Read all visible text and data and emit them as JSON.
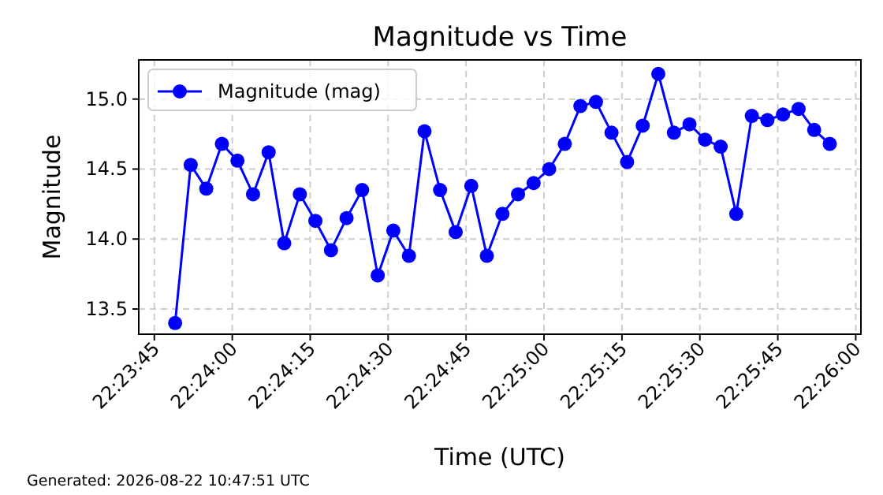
{
  "chart_data": {
    "type": "line",
    "title": "Magnitude vs Time",
    "xlabel": "Time (UTC)",
    "ylabel": "Magnitude",
    "x": [
      "2026-08-22T22:23:49",
      "2026-08-22T22:23:52",
      "2026-08-22T22:23:55",
      "2026-08-22T22:23:58",
      "2026-08-22T22:24:01",
      "2026-08-22T22:24:04",
      "2026-08-22T22:24:07",
      "2026-08-22T22:24:10",
      "2026-08-22T22:24:13",
      "2026-08-22T22:24:16",
      "2026-08-22T22:24:19",
      "2026-08-22T22:24:22",
      "2026-08-22T22:24:25",
      "2026-08-22T22:24:28",
      "2026-08-22T22:24:31",
      "2026-08-22T22:24:34",
      "2026-08-22T22:24:37",
      "2026-08-22T22:24:40",
      "2026-08-22T22:24:43",
      "2026-08-22T22:24:46",
      "2026-08-22T22:24:49",
      "2026-08-22T22:24:52",
      "2026-08-22T22:24:55",
      "2026-08-22T22:24:58",
      "2026-08-22T22:25:01",
      "2026-08-22T22:25:04",
      "2026-08-22T22:25:07",
      "2026-08-22T22:25:10",
      "2026-08-22T22:25:13",
      "2026-08-22T22:25:16",
      "2026-08-22T22:25:19",
      "2026-08-22T22:25:22",
      "2026-08-22T22:25:25",
      "2026-08-22T22:25:28",
      "2026-08-22T22:25:31",
      "2026-08-22T22:25:34",
      "2026-08-22T22:25:37",
      "2026-08-22T22:25:40",
      "2026-08-22T22:25:43",
      "2026-08-22T22:25:46",
      "2026-08-22T22:25:49",
      "2026-08-22T22:25:52",
      "2026-08-22T22:25:55"
    ],
    "series": [
      {
        "name": "Magnitude (mag)",
        "color": "#0000ff",
        "values": [
          13.4,
          14.53,
          14.36,
          14.68,
          14.56,
          14.32,
          14.62,
          13.97,
          14.32,
          14.13,
          13.92,
          14.15,
          14.35,
          13.74,
          14.06,
          13.88,
          14.77,
          14.35,
          14.05,
          14.38,
          13.88,
          14.18,
          14.32,
          14.4,
          14.5,
          14.68,
          14.95,
          14.98,
          14.76,
          14.55,
          14.81,
          15.18,
          14.76,
          14.82,
          14.71,
          14.66,
          14.18,
          14.88,
          14.85,
          14.89,
          14.93,
          14.78,
          14.68
        ]
      }
    ],
    "xlim": [
      "2026-08-22T22:23:42",
      "2026-08-22T22:26:01"
    ],
    "xticks": [
      {
        "value": "2026-08-22T22:23:45",
        "label": "22:23:45"
      },
      {
        "value": "2026-08-22T22:24:00",
        "label": "22:24:00"
      },
      {
        "value": "2026-08-22T22:24:15",
        "label": "22:24:15"
      },
      {
        "value": "2026-08-22T22:24:30",
        "label": "22:24:30"
      },
      {
        "value": "2026-08-22T22:24:45",
        "label": "22:24:45"
      },
      {
        "value": "2026-08-22T22:25:00",
        "label": "22:25:00"
      },
      {
        "value": "2026-08-22T22:25:15",
        "label": "22:25:15"
      },
      {
        "value": "2026-08-22T22:25:30",
        "label": "22:25:30"
      },
      {
        "value": "2026-08-22T22:25:45",
        "label": "22:25:45"
      },
      {
        "value": "2026-08-22T22:26:00",
        "label": "22:26:00"
      }
    ],
    "ylim": [
      13.32,
      15.28
    ],
    "yticks": [
      {
        "value": 13.5,
        "label": "13.5"
      },
      {
        "value": 14,
        "label": "14.0"
      },
      {
        "value": 14.5,
        "label": "14.5"
      },
      {
        "value": 15,
        "label": "15.0"
      }
    ],
    "grid": true,
    "legend": "top left",
    "marker": "circle",
    "line_style": "solid",
    "annotations": [
      "Generated: 2026-08-22 10:47:51 UTC"
    ]
  }
}
